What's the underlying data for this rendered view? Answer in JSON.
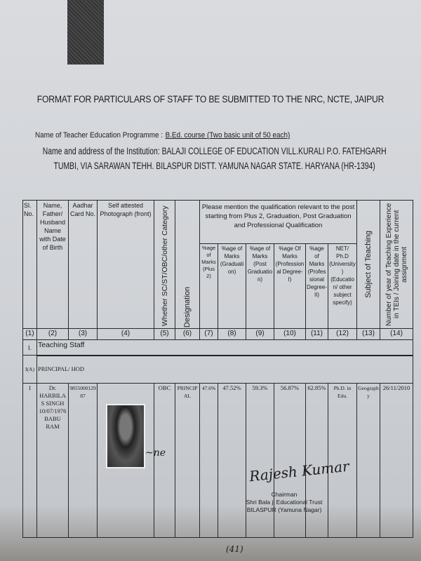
{
  "title": "FORMAT FOR PARTICULARS OF STAFF TO BE SUBMITTED TO THE NRC, NCTE, JAIPUR",
  "programme_label": "Name of Teacher Education Programme  :",
  "programme_value": "B.Ed. course (Two basic unit of 50 each)",
  "institution_line1": "Name and address of the Institution: BALAJI COLLEGE OF EDUCATION VILL.KURALI P.O. FATEHGARH",
  "institution_line2": "TUMBI, VIA SARAWAN TEHH. BILASPUR DISTT. YAMUNA NAGAR STATE. HARYANA (HR-1394)",
  "table": {
    "headers": {
      "sl": "Sl. No.",
      "name": "Name, Father/ Husband Name with Date of Birth",
      "aadhar": "Aadhar Card No.",
      "photo": "Self attested Photograph (front)",
      "category": "Whether SC/ST/OBC/other Category",
      "designation": "Designation",
      "qualification": "Please mention the qualification relevant to the post starting from Plus 2, Graduation, Post Graduation and Professional Qualification",
      "plus2": "%age of Marks (Plus 2)",
      "graduation": "%age of Marks (Graduation)",
      "post_graduation": "%age of Marks (Post Graduation)",
      "prof1": "%age Of Marks (Professional Degree-I)",
      "prof2": "%age of Marks (Professional Degree-II)",
      "net": "NET/ Ph.D (University) (Education/ other subject specify)",
      "subject": "Subject of Teaching",
      "experience": "Number of year of Teaching Experience in TEIs / Joining date in the current assignment"
    },
    "column_numbers": [
      "(1)",
      "(2)",
      "(3)",
      "(4)",
      "(5)",
      "(6)",
      "(7)",
      "(8)",
      "(9)",
      "(10)",
      "(11)",
      "(12)",
      "(13)",
      "(14)"
    ],
    "section_i": {
      "num": "I.",
      "label": "Teaching Staff"
    },
    "section_iia": {
      "num": "I(A)",
      "label": "PRINCIPAL/ HOD"
    },
    "row": {
      "sl": "I",
      "name": "Dr. HARBILAS SINGH",
      "dob": "10/07/1976",
      "father": "BABU RAM",
      "aadhar": "985500012987",
      "category": "OBC",
      "designation": "PRINCIPAL",
      "plus2": "47.6%",
      "graduation": "47.52%",
      "post_graduation": "59.3%",
      "prof1": "56.87%",
      "prof2": "62.85%",
      "net": "Ph.D. in Edu.",
      "subject": "Geography",
      "joining": "26/11/2010"
    }
  },
  "signature": "Rajesh Kumar",
  "stamp": {
    "line1": "Chairman",
    "line2": "Shri Bala ji Educational Trust",
    "line3": "BILASPUR (Yamuna Nagar)"
  },
  "page_number": "(41)"
}
